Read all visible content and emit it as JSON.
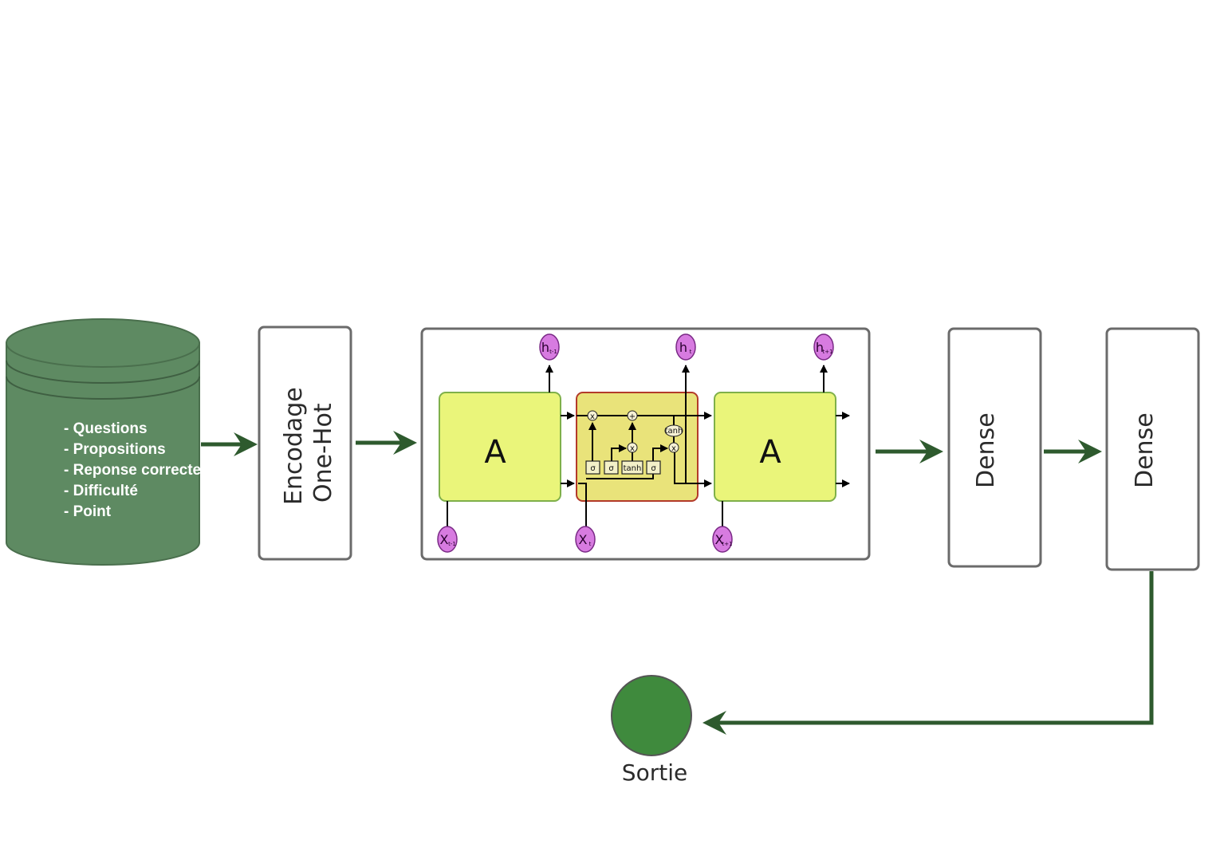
{
  "database": {
    "items": [
      "- Questions",
      "- Propositions",
      "- Reponse correcte",
      "- Difficulté",
      "- Point"
    ]
  },
  "encoding": {
    "line1": "Encodage",
    "line2": "One-Hot"
  },
  "lstm": {
    "cell_label_left": "A",
    "cell_label_right": "A",
    "outputs": [
      "h",
      "h",
      "h"
    ],
    "output_subs": [
      "t-1",
      "t",
      "t+1"
    ],
    "inputs": [
      "X",
      "X",
      "X"
    ],
    "input_subs": [
      "t-1",
      "t",
      "t+1"
    ],
    "gates": [
      "σ",
      "σ",
      "tanh",
      "σ"
    ],
    "ops": [
      "x",
      "+",
      "x",
      "x"
    ],
    "tanh_op": "tanh"
  },
  "dense1": {
    "label": "Dense"
  },
  "dense2": {
    "label": "Dense"
  },
  "output": {
    "label": "Sortie"
  },
  "colors": {
    "db_fill": "#5e8a62",
    "arrow": "#2e5a2e",
    "cell_green": "#eaf57a",
    "cell_yellow": "#e9e37a",
    "node_purple": "#d77be0",
    "output_circle": "#3f8a3d"
  }
}
